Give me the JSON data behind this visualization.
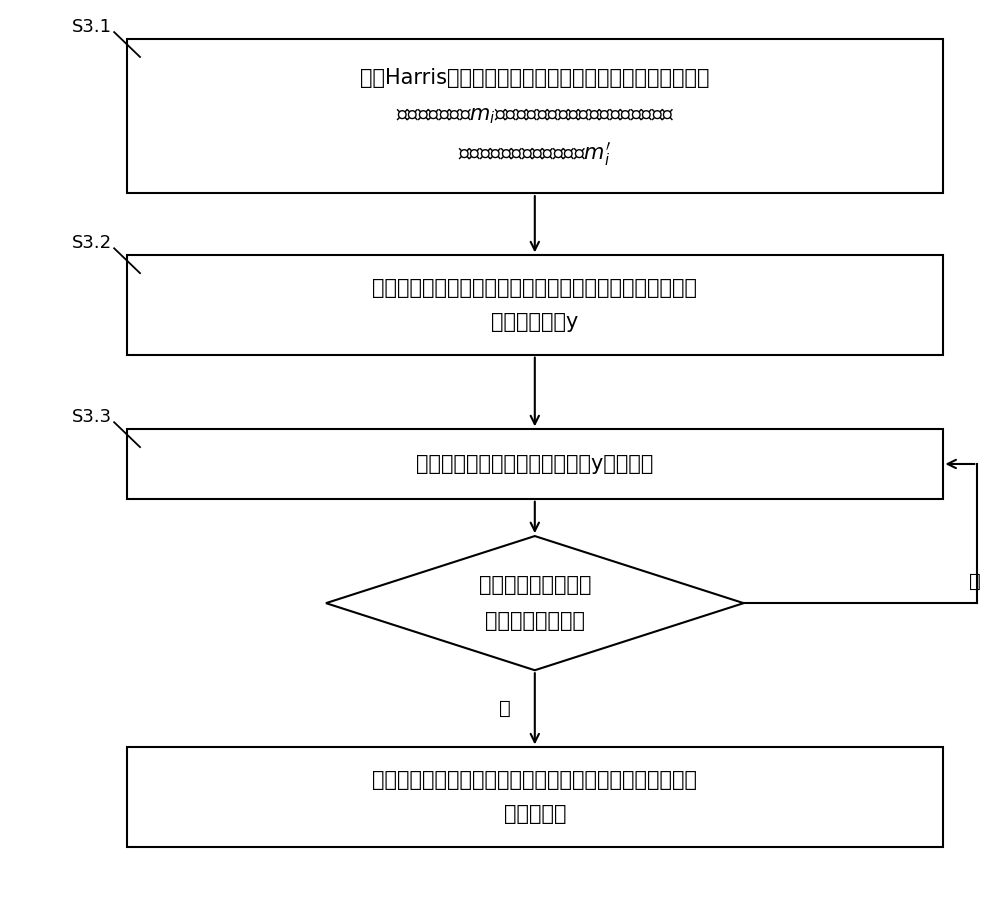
{
  "bg_color": "#ffffff",
  "box_edge_color": "#000000",
  "box_fill_color": "#ffffff",
  "arrow_color": "#000000",
  "text_color": "#000000",
  "label_s31": "S3.1",
  "label_s32": "S3.2",
  "label_s33": "S3.3",
  "box1_line1": "采用Harris角点提取算法识别标定板上标定角点并计算标定",
  "box1_line2": "角点的像素坐标$m_i$，使用相机的原始内参和外参得到标定",
  "box1_line3": "板上标定角点的反投影坐标$m_i'$",
  "box2_line1": "将标定角点的像素坐标与标定角点的反投影坐标的平均误差",
  "box2_line2": "作为目标函数y",
  "box3_text": "采用天牛须优化算法对目标函数y进行优化",
  "diamond_line1": "目标函数值是否小于",
  "diamond_line2": "预设的全局最优値",
  "box4_line1": "更新相机的内参和外参，并将其作为优化后的相机内参和外",
  "box4_line2": "参进行输出",
  "yes_label": "是",
  "no_label": "否",
  "fontsize_main": 15,
  "fontsize_label": 13,
  "fontsize_yesno": 14
}
